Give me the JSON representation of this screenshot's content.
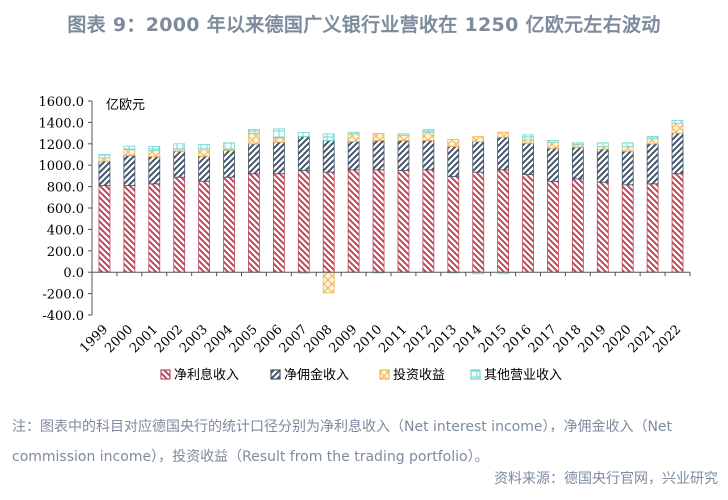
{
  "title": "图表 9：2000 年以来德国广义银行业营收在 1250 亿欧元左右波动",
  "note": "注：图表中的科目对应德国央行的统计口径分别为净利息收入（Net interest income），净佣金收入（Net commission income），投资收益（Result from the trading portfolio）。",
  "source": "资料来源：德国央行官网，兴业研究",
  "chart_data": {
    "type": "bar",
    "stacked": true,
    "title": "",
    "xlabel": "",
    "ylabel": "亿欧元",
    "ylim": [
      -400,
      1600
    ],
    "yticks": [
      1600,
      1400,
      1200,
      1000,
      800,
      600,
      400,
      200,
      0,
      -200,
      -400
    ],
    "ytick_labels": [
      "1600.0",
      "1400.0",
      "1200.0",
      "1000.0",
      "800.0",
      "600.0",
      "400.0",
      "200.0",
      "0.0",
      "-200.0",
      "-400.0"
    ],
    "grid": false,
    "legend_position": "bottom",
    "categories": [
      "1999",
      "2000",
      "2001",
      "2002",
      "2003",
      "2004",
      "2005",
      "2006",
      "2007",
      "2008",
      "2009",
      "2010",
      "2011",
      "2012",
      "2013",
      "2014",
      "2015",
      "2016",
      "2017",
      "2018",
      "2019",
      "2020",
      "2021",
      "2022"
    ],
    "series": [
      {
        "name": "净利息收入",
        "color": "#c0465a",
        "pattern": "back-diagonal",
        "values": [
          810,
          810,
          826,
          888,
          850,
          888,
          920,
          920,
          950,
          935,
          957,
          957,
          950,
          957,
          894,
          935,
          957,
          913,
          850,
          873,
          841,
          817,
          826,
          920
        ]
      },
      {
        "name": "净佣金收入",
        "color": "#44546a",
        "pattern": "forward-diagonal",
        "values": [
          227,
          281,
          255,
          243,
          234,
          250,
          280,
          295,
          318,
          296,
          264,
          274,
          281,
          274,
          281,
          286,
          305,
          293,
          309,
          295,
          309,
          314,
          374,
          379
        ]
      },
      {
        "name": "投资收益",
        "color": "#f0b656",
        "pattern": "crosshatch",
        "values": [
          32,
          56,
          56,
          22,
          69,
          6,
          99,
          41,
          -10,
          -193,
          72,
          65,
          49,
          77,
          65,
          47,
          46,
          31,
          56,
          25,
          25,
          44,
          47,
          94
        ]
      },
      {
        "name": "其他营业收入",
        "color": "#6fd6d6",
        "pattern": "grid",
        "values": [
          31,
          31,
          38,
          47,
          40,
          65,
          35,
          84,
          38,
          62,
          15,
          -5,
          13,
          26,
          -5,
          -15,
          -15,
          47,
          16,
          16,
          34,
          34,
          21,
          25
        ]
      }
    ]
  }
}
